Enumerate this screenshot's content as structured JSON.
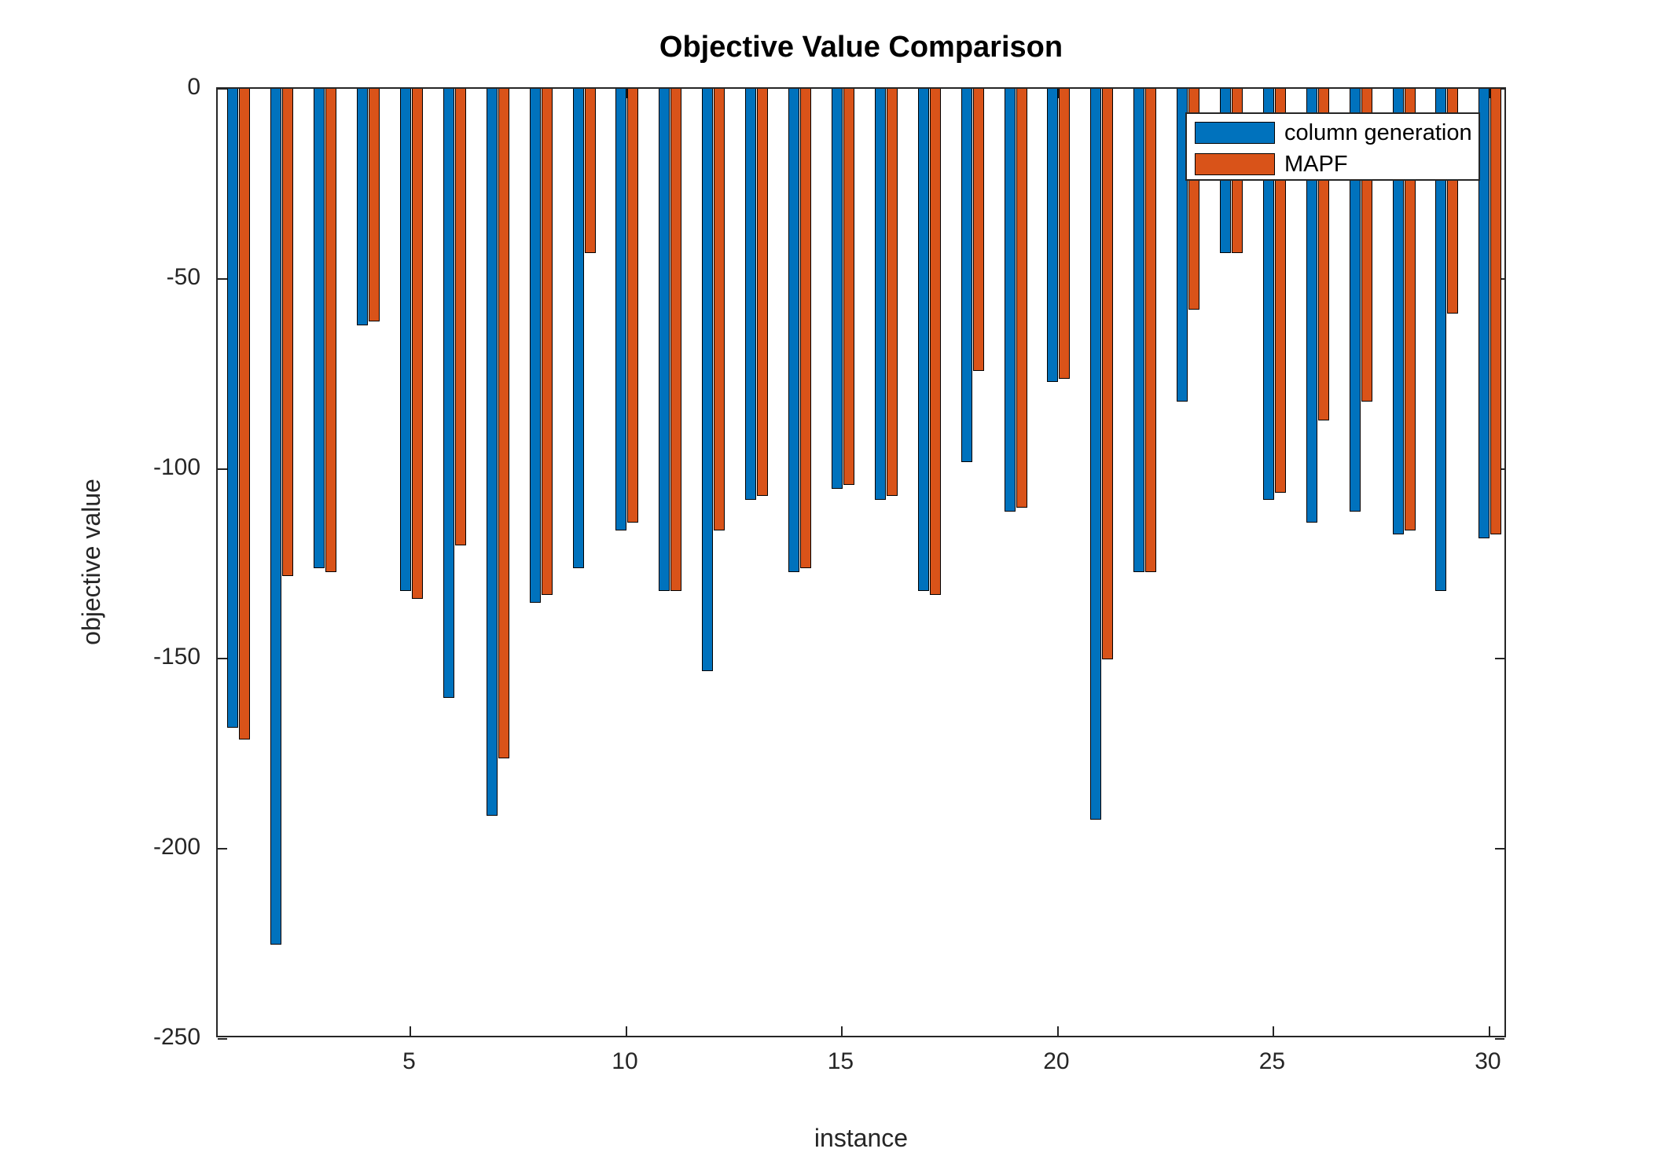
{
  "title": "Objective Value Comparison",
  "axes": {
    "xlabel": "instance",
    "ylabel": "objective value"
  },
  "legend": {
    "items": [
      {
        "label": "column generation",
        "color": "#0072BD"
      },
      {
        "label": "MAPF",
        "color": "#D95319"
      }
    ]
  },
  "colors": {
    "series1": "#0072BD",
    "series2": "#D95319",
    "axis": "#262626",
    "bar_edge": "#000000",
    "background": "#FFFFFF"
  },
  "chart_data": {
    "type": "bar",
    "title": "Objective Value Comparison",
    "xlabel": "instance",
    "ylabel": "objective value",
    "categories": [
      1,
      2,
      3,
      4,
      5,
      6,
      7,
      8,
      9,
      10,
      11,
      12,
      13,
      14,
      15,
      16,
      17,
      18,
      19,
      20,
      21,
      22,
      23,
      24,
      25,
      26,
      27,
      28,
      29,
      30
    ],
    "series": [
      {
        "name": "column generation",
        "color": "#0072BD",
        "values": [
          -168,
          -225,
          -126,
          -62,
          -132,
          -160,
          -191,
          -135,
          -126,
          -116,
          -132,
          -153,
          -108,
          -127,
          -105,
          -108,
          -132,
          -98,
          -111,
          -77,
          -192,
          -127,
          -82,
          -43,
          -108,
          -114,
          -111,
          -117,
          -132,
          -118
        ]
      },
      {
        "name": "MAPF",
        "color": "#D95319",
        "values": [
          -171,
          -128,
          -127,
          -61,
          -134,
          -120,
          -176,
          -133,
          -43,
          -114,
          -132,
          -116,
          -107,
          -126,
          -104,
          -107,
          -133,
          -74,
          -110,
          -76,
          -150,
          -127,
          -58,
          -43,
          -106,
          -87,
          -82,
          -116,
          -59,
          -117
        ]
      }
    ],
    "ylim": [
      -250,
      0
    ],
    "yticks": [
      0,
      -50,
      -100,
      -150,
      -200,
      -250
    ],
    "xticks": [
      5,
      10,
      15,
      20,
      25,
      30
    ],
    "grid": false,
    "legend_position": "top-right",
    "bar_baseline": 0
  }
}
